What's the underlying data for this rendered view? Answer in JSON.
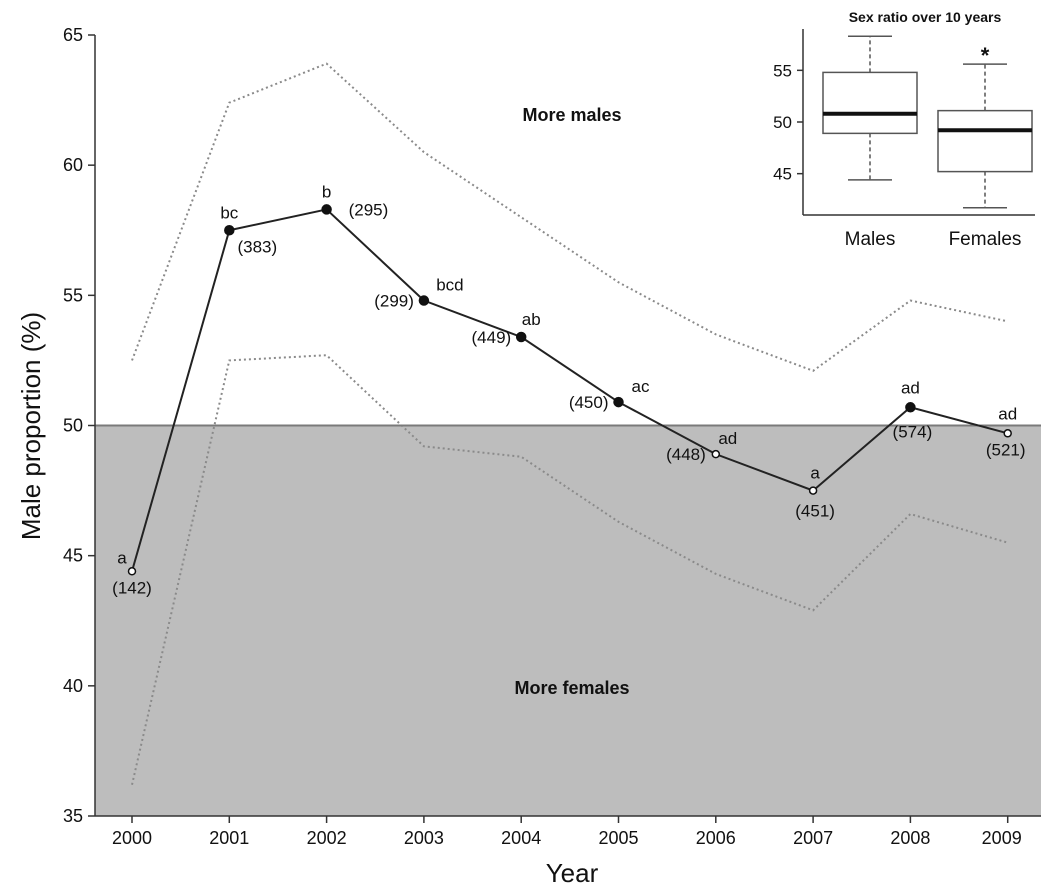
{
  "chart_data": [
    {
      "type": "line",
      "title": "",
      "xlabel": "Year",
      "ylabel": "Male proportion (%)",
      "ylim": [
        35,
        65
      ],
      "yticks": [
        35,
        40,
        45,
        50,
        55,
        60,
        65
      ],
      "categories": [
        "2000",
        "2001",
        "2002",
        "2003",
        "2004",
        "2005",
        "2006",
        "2007",
        "2008",
        "2009"
      ],
      "reference_line": 50,
      "region_labels": {
        "above": "More males",
        "below": "More females"
      },
      "series": [
        {
          "values": [
            44.4,
            57.5,
            58.3,
            54.8,
            53.4,
            50.9,
            48.9,
            47.5,
            50.7,
            49.7
          ],
          "significant": [
            false,
            true,
            true,
            true,
            true,
            true,
            false,
            false,
            true,
            false
          ],
          "letters": [
            "a",
            "bc",
            "b",
            "bcd",
            "ab",
            "ac",
            "ad",
            "a",
            "ad",
            "ad"
          ],
          "n": [
            "(142)",
            "(383)",
            "(295)",
            "(299)",
            "(449)",
            "(450)",
            "(448)",
            "(451)",
            "(574)",
            "(521)"
          ]
        },
        {
          "style": "dotted",
          "values": [
            52.5,
            62.4,
            63.9,
            60.5,
            58.0,
            55.5,
            53.5,
            52.1,
            54.8,
            54.0
          ]
        },
        {
          "style": "dotted",
          "values": [
            36.2,
            52.5,
            52.7,
            49.2,
            48.8,
            46.3,
            44.3,
            42.9,
            46.6,
            45.5
          ]
        }
      ]
    },
    {
      "type": "boxplot",
      "title": "Sex ratio over 10 years",
      "categories": [
        "Males",
        "Females"
      ],
      "yticks": [
        45,
        50,
        55
      ],
      "ylim": [
        41,
        59
      ],
      "boxes": [
        {
          "whisker_low": 44.4,
          "q1": 48.9,
          "median": 50.8,
          "q3": 54.8,
          "whisker_high": 58.3,
          "marker": ""
        },
        {
          "whisker_low": 41.7,
          "q1": 45.2,
          "median": 49.2,
          "q3": 51.1,
          "whisker_high": 55.6,
          "marker": "*"
        }
      ]
    }
  ]
}
